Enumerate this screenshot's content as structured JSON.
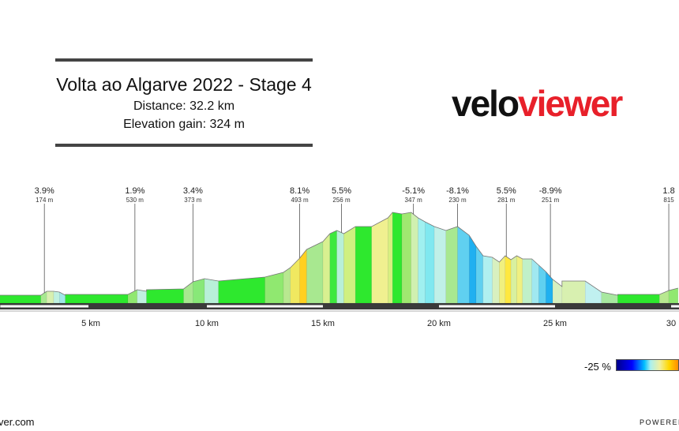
{
  "header": {
    "title": "Volta ao Algarve 2022 - Stage 4",
    "distance": "Distance: 32.2 km",
    "elevation": "Elevation gain: 324 m"
  },
  "logo": {
    "part1": "velo",
    "part2": "viewer"
  },
  "scale": {
    "label": "-25 %"
  },
  "footer": {
    "left": "ver.com",
    "right": "POWERED"
  },
  "chart_data": {
    "type": "area",
    "title": "",
    "xlabel": "",
    "ylabel": "",
    "x_ticks": [
      {
        "km": 5,
        "label": "5 km"
      },
      {
        "km": 10,
        "label": "10 km"
      },
      {
        "km": 15,
        "label": "15 km"
      },
      {
        "km": 20,
        "label": "20 km"
      },
      {
        "km": 25,
        "label": "25 km"
      },
      {
        "km": 30,
        "label": "30"
      }
    ],
    "annotations": [
      {
        "km": 3.0,
        "grade": "3.9%",
        "distance": "174 m"
      },
      {
        "km": 6.9,
        "grade": "1.9%",
        "distance": "530 m"
      },
      {
        "km": 9.4,
        "grade": "3.4%",
        "distance": "373 m"
      },
      {
        "km": 14.0,
        "grade": "8.1%",
        "distance": "493 m"
      },
      {
        "km": 15.8,
        "grade": "5.5%",
        "distance": "256 m"
      },
      {
        "km": 18.9,
        "grade": "-5.1%",
        "distance": "347 m"
      },
      {
        "km": 20.8,
        "grade": "-8.1%",
        "distance": "230 m"
      },
      {
        "km": 22.9,
        "grade": "5.5%",
        "distance": "281 m"
      },
      {
        "km": 24.8,
        "grade": "-8.9%",
        "distance": "251 m"
      },
      {
        "km": 29.9,
        "grade": "1.8",
        "distance": "815"
      }
    ],
    "segments": [
      {
        "x0": 0.0,
        "x1": 2.85,
        "h0": 10,
        "h1": 10,
        "color": "#2ee82e"
      },
      {
        "x0": 2.85,
        "x1": 3.1,
        "h0": 10,
        "h1": 15,
        "color": "#a8e890"
      },
      {
        "x0": 3.1,
        "x1": 3.4,
        "h0": 15,
        "h1": 15,
        "color": "#d8f0b0"
      },
      {
        "x0": 3.4,
        "x1": 3.65,
        "h0": 15,
        "h1": 14,
        "color": "#c0f0e0"
      },
      {
        "x0": 3.65,
        "x1": 3.9,
        "h0": 14,
        "h1": 10,
        "color": "#a0e8e8"
      },
      {
        "x0": 3.9,
        "x1": 6.6,
        "h0": 11,
        "h1": 11,
        "color": "#2ee82e"
      },
      {
        "x0": 6.6,
        "x1": 7.0,
        "h0": 11,
        "h1": 17,
        "color": "#90e870"
      },
      {
        "x0": 7.0,
        "x1": 7.4,
        "h0": 17,
        "h1": 15,
        "color": "#c0f0e0"
      },
      {
        "x0": 7.4,
        "x1": 9.0,
        "h0": 17,
        "h1": 18,
        "color": "#2ee82e"
      },
      {
        "x0": 9.0,
        "x1": 9.4,
        "h0": 18,
        "h1": 27,
        "color": "#a8e890"
      },
      {
        "x0": 9.4,
        "x1": 9.9,
        "h0": 27,
        "h1": 31,
        "color": "#88e878"
      },
      {
        "x0": 9.9,
        "x1": 10.5,
        "h0": 31,
        "h1": 28,
        "color": "#b8f0d8"
      },
      {
        "x0": 10.5,
        "x1": 12.5,
        "h0": 28,
        "h1": 33,
        "color": "#2ee82e"
      },
      {
        "x0": 12.5,
        "x1": 13.3,
        "h0": 33,
        "h1": 39,
        "color": "#90e870"
      },
      {
        "x0": 13.3,
        "x1": 13.6,
        "h0": 39,
        "h1": 45,
        "color": "#b8e890"
      },
      {
        "x0": 13.6,
        "x1": 14.0,
        "h0": 45,
        "h1": 57,
        "color": "#f0e860"
      },
      {
        "x0": 14.0,
        "x1": 14.3,
        "h0": 57,
        "h1": 68,
        "color": "#ffd020"
      },
      {
        "x0": 14.3,
        "x1": 15.0,
        "h0": 68,
        "h1": 78,
        "color": "#a8e890"
      },
      {
        "x0": 15.0,
        "x1": 15.3,
        "h0": 78,
        "h1": 88,
        "color": "#d8f090"
      },
      {
        "x0": 15.3,
        "x1": 15.6,
        "h0": 88,
        "h1": 92,
        "color": "#3ee83e"
      },
      {
        "x0": 15.6,
        "x1": 15.9,
        "h0": 92,
        "h1": 88,
        "color": "#b8f0d8"
      },
      {
        "x0": 15.9,
        "x1": 16.4,
        "h0": 88,
        "h1": 97,
        "color": "#d0f080"
      },
      {
        "x0": 16.4,
        "x1": 17.1,
        "h0": 97,
        "h1": 97,
        "color": "#2ee82e"
      },
      {
        "x0": 17.1,
        "x1": 17.8,
        "h0": 97,
        "h1": 108,
        "color": "#f0f090"
      },
      {
        "x0": 17.8,
        "x1": 18.0,
        "h0": 108,
        "h1": 115,
        "color": "#d8f080"
      },
      {
        "x0": 18.0,
        "x1": 18.4,
        "h0": 115,
        "h1": 113,
        "color": "#2ee82e"
      },
      {
        "x0": 18.4,
        "x1": 18.8,
        "h0": 113,
        "h1": 115,
        "color": "#a0e870"
      },
      {
        "x0": 18.8,
        "x1": 19.1,
        "h0": 115,
        "h1": 108,
        "color": "#d0f0b0"
      },
      {
        "x0": 19.1,
        "x1": 19.4,
        "h0": 108,
        "h1": 103,
        "color": "#a0f0f0"
      },
      {
        "x0": 19.4,
        "x1": 19.8,
        "h0": 103,
        "h1": 97,
        "color": "#80e8f0"
      },
      {
        "x0": 19.8,
        "x1": 20.3,
        "h0": 97,
        "h1": 92,
        "color": "#c0f0e8"
      },
      {
        "x0": 20.3,
        "x1": 20.8,
        "h0": 92,
        "h1": 97,
        "color": "#a8e890"
      },
      {
        "x0": 20.8,
        "x1": 21.3,
        "h0": 97,
        "h1": 86,
        "color": "#60d0f0"
      },
      {
        "x0": 21.3,
        "x1": 21.6,
        "h0": 86,
        "h1": 72,
        "color": "#20b0f0"
      },
      {
        "x0": 21.6,
        "x1": 21.9,
        "h0": 72,
        "h1": 60,
        "color": "#60d0f0"
      },
      {
        "x0": 21.9,
        "x1": 22.3,
        "h0": 60,
        "h1": 58,
        "color": "#b0f0f0"
      },
      {
        "x0": 22.3,
        "x1": 22.6,
        "h0": 58,
        "h1": 52,
        "color": "#d8f0c0"
      },
      {
        "x0": 22.6,
        "x1": 22.85,
        "h0": 52,
        "h1": 60,
        "color": "#f0f080"
      },
      {
        "x0": 22.85,
        "x1": 23.1,
        "h0": 60,
        "h1": 55,
        "color": "#ffe840"
      },
      {
        "x0": 23.1,
        "x1": 23.35,
        "h0": 55,
        "h1": 60,
        "color": "#d8f0a0"
      },
      {
        "x0": 23.35,
        "x1": 23.6,
        "h0": 60,
        "h1": 56,
        "color": "#f0f080"
      },
      {
        "x0": 23.6,
        "x1": 24.0,
        "h0": 56,
        "h1": 56,
        "color": "#c0f0c8"
      },
      {
        "x0": 24.0,
        "x1": 24.3,
        "h0": 56,
        "h1": 48,
        "color": "#a0e8f0"
      },
      {
        "x0": 24.3,
        "x1": 24.6,
        "h0": 48,
        "h1": 40,
        "color": "#60d0f0"
      },
      {
        "x0": 24.6,
        "x1": 24.9,
        "h0": 40,
        "h1": 30,
        "color": "#20b0f0"
      },
      {
        "x0": 24.9,
        "x1": 25.3,
        "h0": 30,
        "h1": 21,
        "color": "#d8f0c0"
      },
      {
        "x0": 25.3,
        "x1": 26.3,
        "h0": 28,
        "h1": 28,
        "color": "#d8f0b0"
      },
      {
        "x0": 26.3,
        "x1": 27.0,
        "h0": 28,
        "h1": 14,
        "color": "#c0f0f0"
      },
      {
        "x0": 27.0,
        "x1": 27.7,
        "h0": 14,
        "h1": 10,
        "color": "#a8e8a0"
      },
      {
        "x0": 27.7,
        "x1": 29.5,
        "h0": 11,
        "h1": 11,
        "color": "#2ee82e"
      },
      {
        "x0": 29.5,
        "x1": 29.9,
        "h0": 11,
        "h1": 16,
        "color": "#b8e890"
      },
      {
        "x0": 29.9,
        "x1": 30.3,
        "h0": 16,
        "h1": 19,
        "color": "#90e870"
      }
    ]
  }
}
